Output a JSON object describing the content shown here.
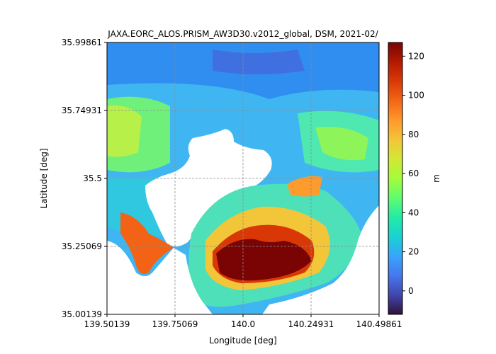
{
  "chart_data": {
    "type": "heatmap",
    "title": "JAXA.EORC_ALOS.PRISM_AW3D30.v2012_global, DSM, 2021-02/",
    "xlabel": "Longitude [deg]",
    "ylabel": "Latitude [deg]",
    "xlim": [
      139.50139,
      140.49861
    ],
    "ylim": [
      35.00139,
      35.99861
    ],
    "xticks": [
      139.50139,
      139.75069,
      140.0,
      140.24931,
      140.49861
    ],
    "xtick_labels": [
      "139.50139",
      "139.75069",
      "140.0",
      "140.24931",
      "140.49861"
    ],
    "yticks": [
      35.00139,
      35.25069,
      35.5,
      35.74931,
      35.99861
    ],
    "ytick_labels": [
      "35.00139",
      "35.25069",
      "35.5",
      "35.74931",
      "35.99861"
    ],
    "grid": true,
    "colorbar": {
      "label": "m",
      "range": [
        -12,
        127
      ],
      "ticks": [
        0,
        20,
        40,
        60,
        80,
        100,
        120
      ],
      "tick_labels": [
        "0",
        "20",
        "40",
        "60",
        "80",
        "100",
        "120"
      ],
      "colormap": "turbo"
    },
    "nodata_color": "#ffffff"
  }
}
